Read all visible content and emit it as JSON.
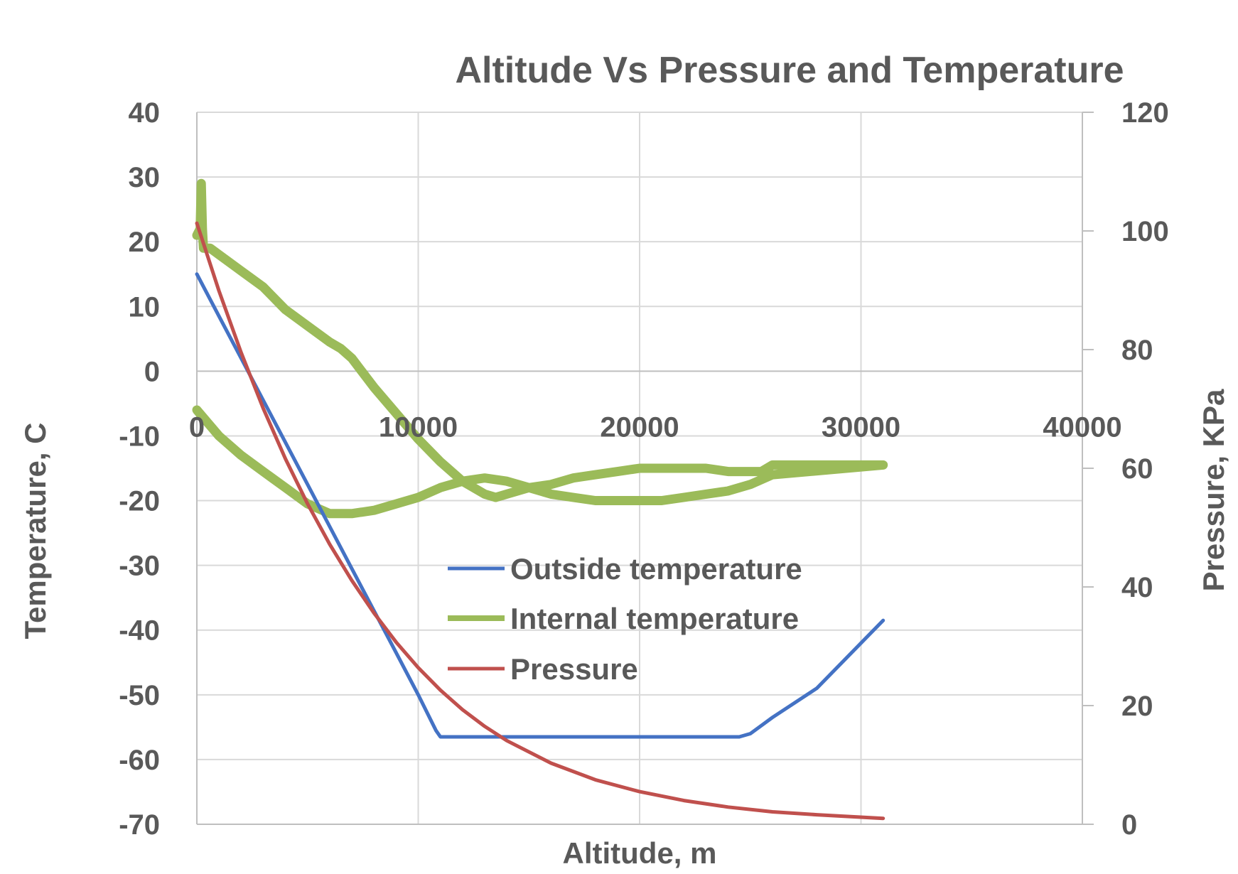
{
  "chart_data": {
    "type": "line",
    "title": "Altitude Vs Pressure and Temperature",
    "xlabel": "Altitude, m",
    "ylabel": "Temperature, C",
    "y2label": "Pressure, KPa",
    "xlim": [
      0,
      40000
    ],
    "ylim": [
      -70,
      40
    ],
    "y2lim": [
      0,
      120
    ],
    "xticks": [
      0,
      10000,
      20000,
      30000,
      40000
    ],
    "yticks": [
      40,
      30,
      20,
      10,
      0,
      -10,
      -20,
      -30,
      -40,
      -50,
      -60,
      -70
    ],
    "y2ticks": [
      120,
      100,
      80,
      60,
      40,
      20,
      0
    ],
    "grid": true,
    "legend_position": "center",
    "series": [
      {
        "name": "Outside temperature",
        "axis": "left",
        "color": "#4472c4",
        "x": [
          0,
          1000,
          2000,
          3000,
          4000,
          5000,
          6000,
          7000,
          8000,
          9000,
          10000,
          10800,
          11000,
          13000,
          15000,
          17000,
          19000,
          21000,
          23000,
          24500,
          25000,
          26000,
          28000,
          31000
        ],
        "y": [
          15,
          8.5,
          2,
          -4.5,
          -11,
          -17.5,
          -24,
          -30.5,
          -37,
          -43.5,
          -50,
          -55.5,
          -56.5,
          -56.5,
          -56.5,
          -56.5,
          -56.5,
          -56.5,
          -56.5,
          -56.5,
          -56,
          -53.5,
          -49,
          -38.5
        ]
      },
      {
        "name": "Internal temperature",
        "axis": "left",
        "color": "#9bbb59",
        "x": [
          0,
          150,
          200,
          250,
          300,
          600,
          1000,
          2000,
          3000,
          4000,
          5000,
          6000,
          6500,
          7000,
          8000,
          9000,
          10000,
          11000,
          12000,
          13000,
          13500,
          14000,
          15000,
          16000,
          17000,
          18000,
          19000,
          20000,
          21000,
          22000,
          23000,
          24000,
          25000,
          25500,
          26000,
          31000,
          26000,
          25000,
          24000,
          23000,
          22000,
          21000,
          20000,
          19000,
          18000,
          17000,
          16000,
          15000,
          14000,
          13000,
          12000,
          11000,
          10000,
          9000,
          8000,
          7000,
          6000,
          5000,
          4000,
          3000,
          2000,
          1000,
          0
        ],
        "y": [
          21,
          22,
          29,
          22,
          19,
          19,
          18,
          15.5,
          13,
          9.5,
          7,
          4.5,
          3.5,
          2,
          -2.5,
          -6.5,
          -10.5,
          -14,
          -17,
          -19,
          -19.5,
          -19,
          -18,
          -17.5,
          -16.5,
          -16,
          -15.5,
          -15,
          -15,
          -15,
          -15,
          -15.5,
          -15.5,
          -15.5,
          -14.5,
          -14.5,
          -16,
          -17.5,
          -18.5,
          -19,
          -19.5,
          -20,
          -20,
          -20,
          -20,
          -19.5,
          -19,
          -18,
          -17,
          -16.5,
          -17,
          -18,
          -19.5,
          -20.5,
          -21.5,
          -22,
          -22,
          -20.5,
          -18,
          -15.5,
          -13,
          -10,
          -6
        ]
      },
      {
        "name": "Pressure",
        "axis": "right",
        "color": "#c0504d",
        "x": [
          0,
          1000,
          2000,
          3000,
          4000,
          5000,
          6000,
          7000,
          8000,
          9000,
          10000,
          11000,
          12000,
          13000,
          14000,
          16000,
          18000,
          20000,
          22000,
          24000,
          26000,
          28000,
          31000
        ],
        "y": [
          101.3,
          89.9,
          79.5,
          70.1,
          61.6,
          54,
          47.2,
          41.1,
          35.6,
          30.7,
          26.4,
          22.6,
          19.3,
          16.5,
          14.1,
          10.3,
          7.5,
          5.5,
          4,
          2.9,
          2.1,
          1.6,
          1
        ]
      }
    ]
  }
}
